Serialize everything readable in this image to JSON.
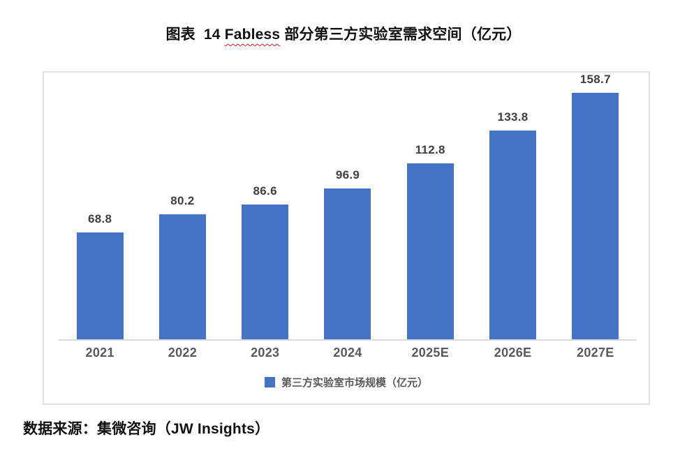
{
  "title": {
    "prefix": "图表  14 ",
    "flagged": "Fabless",
    "suffix": " 部分第三方实验室需求空间（亿元）",
    "full": "图表 14 Fabless 部分第三方实验室需求空间（亿元）"
  },
  "chart_data": {
    "type": "bar",
    "categories": [
      "2021",
      "2022",
      "2023",
      "2024",
      "2025E",
      "2026E",
      "2027E"
    ],
    "values": [
      68.8,
      80.2,
      86.6,
      96.9,
      112.8,
      133.8,
      158.7
    ],
    "series": [
      {
        "name": "第三方实验室市场规模（亿元）",
        "values": [
          68.8,
          80.2,
          86.6,
          96.9,
          112.8,
          133.8,
          158.7
        ]
      }
    ],
    "title": "图表 14 Fabless 部分第三方实验室需求空间（亿元）",
    "xlabel": "",
    "ylabel": "",
    "ylim": [
      0,
      171
    ],
    "grid": false,
    "data_labels": true,
    "legend_position": "bottom",
    "bar_color": "#4472c4",
    "axis_line_color": "#d9d9d9",
    "label_color": "#3f3f3f",
    "tick_color": "#595959"
  },
  "legend": {
    "label": "第三方实验室市场规模（亿元）",
    "swatch_color": "#4472c4"
  },
  "footer": {
    "source": "数据来源：集微咨询（JW Insights）"
  },
  "colors": {
    "bar": "#4472c4",
    "spellcheck_underline": "#e81123",
    "chart_border": "#e3e3e3",
    "axis_line": "#d9d9d9"
  }
}
